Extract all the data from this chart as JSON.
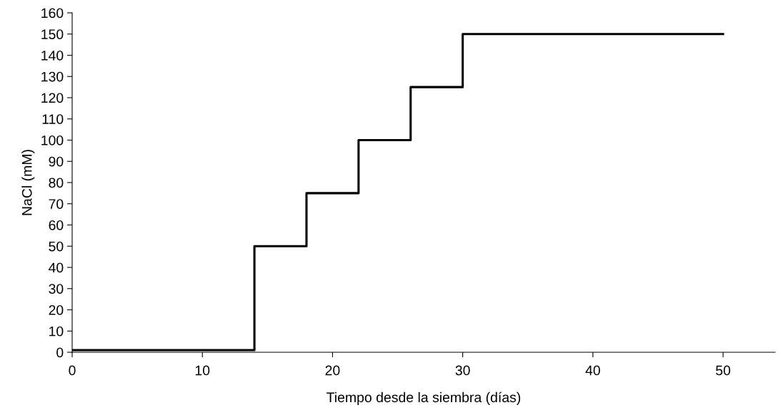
{
  "chart_data": {
    "type": "step",
    "xlabel": "Tiempo desde la siembra (días)",
    "ylabel": "NaCl (mM)",
    "x": [
      0,
      14,
      18,
      22,
      26,
      30,
      50
    ],
    "series": [
      {
        "color": "#000000",
        "values": [
          1,
          50,
          75,
          100,
          125,
          150,
          150
        ]
      }
    ],
    "xlim": [
      0,
      54
    ],
    "xticks": [
      0,
      10,
      20,
      30,
      40,
      50
    ],
    "ylim": [
      0,
      160
    ],
    "yticks": [
      0,
      10,
      20,
      30,
      40,
      50,
      60,
      70,
      80,
      90,
      100,
      110,
      120,
      130,
      140,
      150,
      160
    ],
    "grid": false,
    "legend": false,
    "marker": "none",
    "line_style": "solid"
  }
}
